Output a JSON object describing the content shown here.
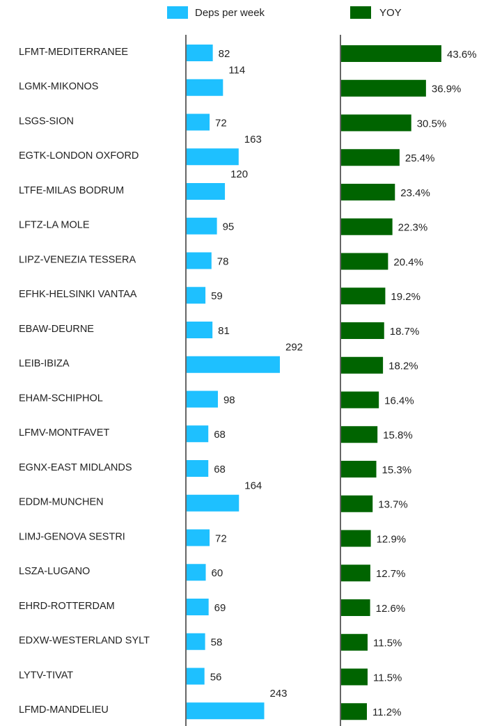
{
  "chart_data": {
    "type": "bar",
    "categories": [
      "LFMT-MEDITERRANEE",
      "LGMK-MIKONOS",
      "LSGS-SION",
      "EGTK-LONDON OXFORD",
      "LTFE-MILAS BODRUM",
      "LFTZ-LA MOLE",
      "LIPZ-VENEZIA TESSERA",
      "EFHK-HELSINKI VANTAA",
      "EBAW-DEURNE",
      "LEIB-IBIZA",
      "EHAM-SCHIPHOL",
      "LFMV-MONTFAVET",
      "EGNX-EAST MIDLANDS",
      "EDDM-MUNCHEN",
      "LIMJ-GENOVA SESTRI",
      "LSZA-LUGANO",
      "EHRD-ROTTERDAM",
      "EDXW-WESTERLAND SYLT",
      "LYTV-TIVAT",
      "LFMD-MANDELIEU"
    ],
    "series": [
      {
        "name": "Deps per week",
        "color": "#1ec0ff",
        "values": [
          82,
          114,
          72,
          163,
          120,
          95,
          78,
          59,
          81,
          292,
          98,
          68,
          68,
          164,
          72,
          60,
          69,
          58,
          56,
          243
        ]
      },
      {
        "name": "YOY",
        "color": "#006400",
        "values": [
          43.6,
          36.9,
          30.5,
          25.4,
          23.4,
          22.3,
          20.4,
          19.2,
          18.7,
          18.2,
          16.4,
          15.8,
          15.3,
          13.7,
          12.9,
          12.7,
          12.6,
          11.5,
          11.5,
          11.2
        ],
        "value_labels": [
          "43.6%",
          "36.9%",
          "30.5%",
          "25.4%",
          "23.4%",
          "22.3%",
          "20.4%",
          "19.2%",
          "18.7%",
          "18.2%",
          "16.4%",
          "15.8%",
          "15.3%",
          "13.7%",
          "12.9%",
          "12.7%",
          "12.6%",
          "11.5%",
          "11.5%",
          "11.2%"
        ]
      }
    ]
  }
}
